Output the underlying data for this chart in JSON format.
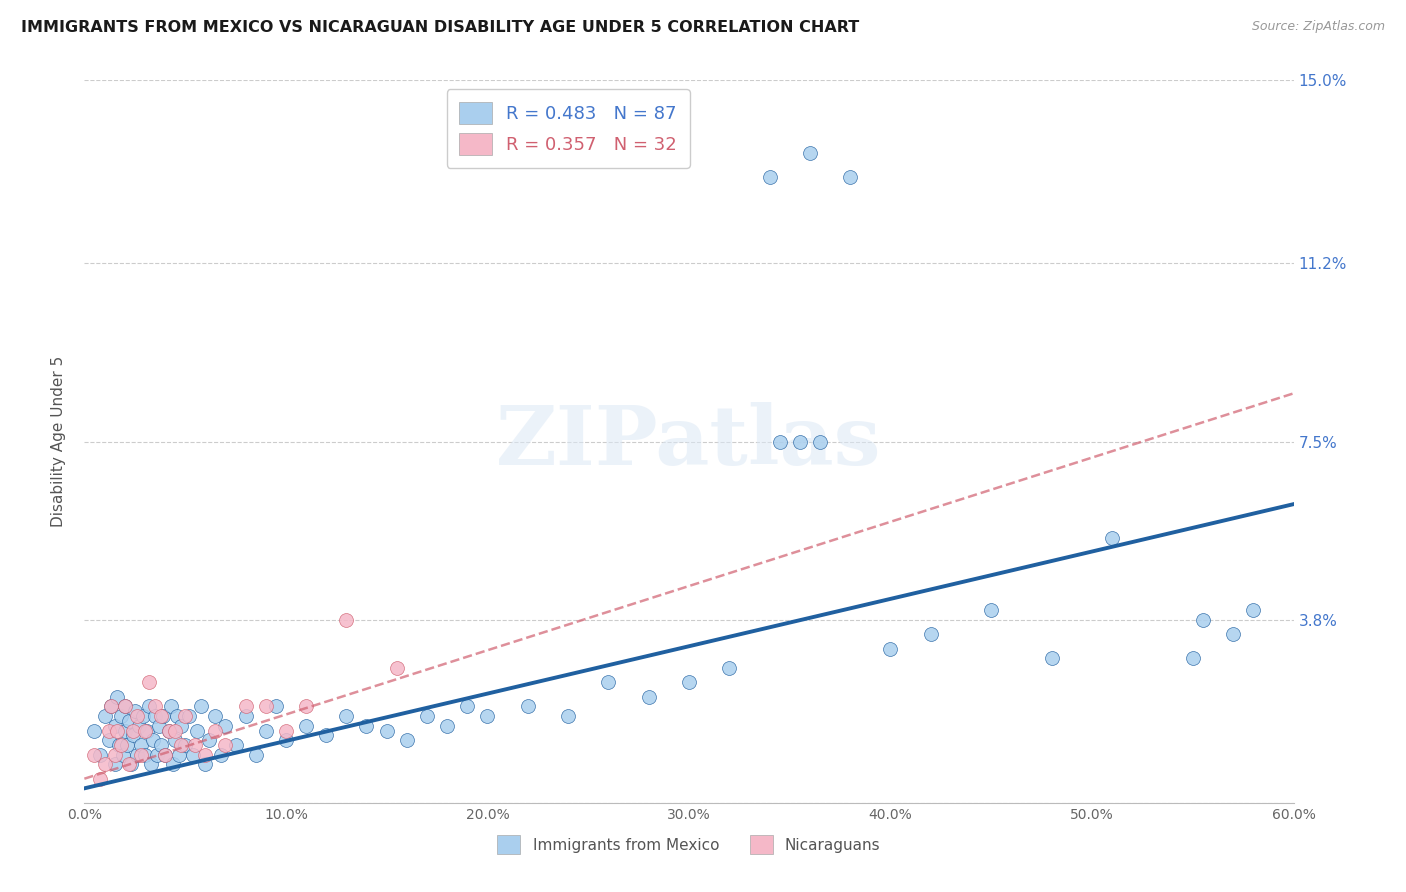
{
  "title": "IMMIGRANTS FROM MEXICO VS NICARAGUAN DISABILITY AGE UNDER 5 CORRELATION CHART",
  "source": "Source: ZipAtlas.com",
  "ylabel": "Disability Age Under 5",
  "legend_bottom": [
    "Immigrants from Mexico",
    "Nicaraguans"
  ],
  "r1": 0.483,
  "n1": 87,
  "r2": 0.357,
  "n2": 32,
  "xlim": [
    0.0,
    0.6
  ],
  "ylim": [
    0.0,
    0.15
  ],
  "yticks": [
    0.0,
    0.038,
    0.075,
    0.112,
    0.15
  ],
  "ytick_labels": [
    "",
    "3.8%",
    "7.5%",
    "11.2%",
    "15.0%"
  ],
  "xticks": [
    0.0,
    0.1,
    0.2,
    0.3,
    0.4,
    0.5,
    0.6
  ],
  "xtick_labels": [
    "0.0%",
    "10.0%",
    "20.0%",
    "30.0%",
    "40.0%",
    "50.0%",
    "60.0%"
  ],
  "color_blue": "#aacfee",
  "color_pink": "#f5b8c8",
  "trend_blue": "#2060a0",
  "trend_pink": "#d06070",
  "label_color": "#4477cc",
  "background": "#ffffff",
  "watermark": "ZIPatlas",
  "blue_scatter_x": [
    0.005,
    0.008,
    0.01,
    0.012,
    0.013,
    0.015,
    0.015,
    0.016,
    0.017,
    0.018,
    0.019,
    0.02,
    0.02,
    0.021,
    0.022,
    0.023,
    0.024,
    0.025,
    0.026,
    0.027,
    0.028,
    0.029,
    0.03,
    0.031,
    0.032,
    0.033,
    0.034,
    0.035,
    0.036,
    0.037,
    0.038,
    0.039,
    0.04,
    0.042,
    0.043,
    0.044,
    0.045,
    0.046,
    0.047,
    0.048,
    0.05,
    0.052,
    0.054,
    0.056,
    0.058,
    0.06,
    0.062,
    0.065,
    0.068,
    0.07,
    0.075,
    0.08,
    0.085,
    0.09,
    0.095,
    0.1,
    0.11,
    0.12,
    0.13,
    0.14,
    0.15,
    0.16,
    0.17,
    0.18,
    0.19,
    0.2,
    0.22,
    0.24,
    0.26,
    0.28,
    0.3,
    0.32,
    0.34,
    0.36,
    0.38,
    0.4,
    0.42,
    0.45,
    0.48,
    0.51,
    0.345,
    0.355,
    0.365,
    0.55,
    0.555,
    0.57,
    0.58
  ],
  "blue_scatter_y": [
    0.015,
    0.01,
    0.018,
    0.013,
    0.02,
    0.008,
    0.016,
    0.022,
    0.012,
    0.018,
    0.01,
    0.015,
    0.02,
    0.012,
    0.017,
    0.008,
    0.014,
    0.019,
    0.01,
    0.016,
    0.012,
    0.018,
    0.01,
    0.015,
    0.02,
    0.008,
    0.013,
    0.018,
    0.01,
    0.016,
    0.012,
    0.018,
    0.01,
    0.015,
    0.02,
    0.008,
    0.013,
    0.018,
    0.01,
    0.016,
    0.012,
    0.018,
    0.01,
    0.015,
    0.02,
    0.008,
    0.013,
    0.018,
    0.01,
    0.016,
    0.012,
    0.018,
    0.01,
    0.015,
    0.02,
    0.013,
    0.016,
    0.014,
    0.018,
    0.016,
    0.015,
    0.013,
    0.018,
    0.016,
    0.02,
    0.018,
    0.02,
    0.018,
    0.025,
    0.022,
    0.025,
    0.028,
    0.13,
    0.135,
    0.13,
    0.032,
    0.035,
    0.04,
    0.03,
    0.055,
    0.075,
    0.075,
    0.075,
    0.03,
    0.038,
    0.035,
    0.04
  ],
  "pink_scatter_x": [
    0.005,
    0.008,
    0.01,
    0.012,
    0.013,
    0.015,
    0.016,
    0.018,
    0.02,
    0.022,
    0.024,
    0.026,
    0.028,
    0.03,
    0.032,
    0.035,
    0.038,
    0.04,
    0.042,
    0.045,
    0.048,
    0.05,
    0.055,
    0.06,
    0.065,
    0.07,
    0.08,
    0.09,
    0.1,
    0.11,
    0.13,
    0.155
  ],
  "pink_scatter_y": [
    0.01,
    0.005,
    0.008,
    0.015,
    0.02,
    0.01,
    0.015,
    0.012,
    0.02,
    0.008,
    0.015,
    0.018,
    0.01,
    0.015,
    0.025,
    0.02,
    0.018,
    0.01,
    0.015,
    0.015,
    0.012,
    0.018,
    0.012,
    0.01,
    0.015,
    0.012,
    0.02,
    0.02,
    0.015,
    0.02,
    0.038,
    0.028
  ],
  "blue_trend_x": [
    0.0,
    0.6
  ],
  "blue_trend_y": [
    0.003,
    0.062
  ],
  "pink_trend_x": [
    0.0,
    0.6
  ],
  "pink_trend_y": [
    0.005,
    0.085
  ]
}
